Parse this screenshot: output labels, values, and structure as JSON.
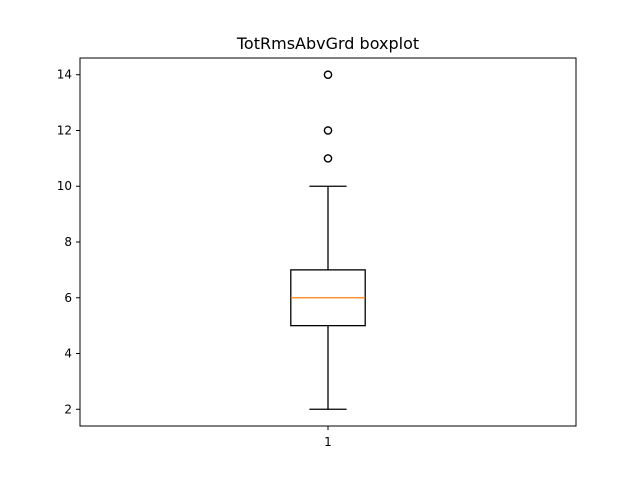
{
  "chart_data": {
    "type": "boxplot",
    "title": "TotRmsAbvGrd boxplot",
    "xlabel": "",
    "ylabel": "",
    "categories": [
      "1"
    ],
    "ylim": [
      1.4,
      14.6
    ],
    "yticks": [
      2,
      4,
      6,
      8,
      10,
      12,
      14
    ],
    "grid": false,
    "boxes": [
      {
        "category": "1",
        "whisker_low": 2,
        "q1": 5,
        "median": 6,
        "q3": 7,
        "whisker_high": 10,
        "outliers": [
          11,
          12,
          14
        ]
      }
    ],
    "colors": {
      "box": "#000000",
      "median": "#ff7f0e",
      "outlier": "#000000"
    }
  }
}
